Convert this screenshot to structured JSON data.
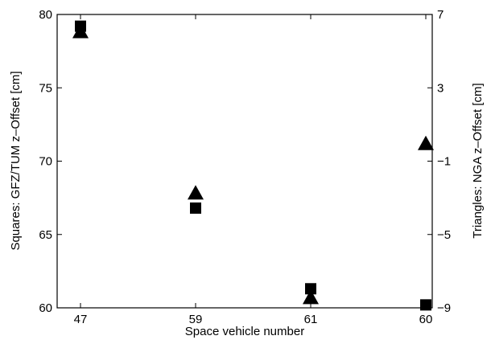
{
  "chart_data": {
    "type": "scatter",
    "xlabel": "Space vehicle number",
    "ylabel_left": "Squares:  GFZ/TUM z–Offset [cm]",
    "ylabel_right": "Triangles:  NGA z–Offset [cm]",
    "categories": [
      "47",
      "59",
      "61",
      "60"
    ],
    "y_left_ticks": [
      "60",
      "65",
      "70",
      "75",
      "80"
    ],
    "y_right_ticks": [
      "−9",
      "−5",
      "−1",
      "3",
      "7"
    ],
    "ylim_left": [
      60,
      80
    ],
    "ylim_right": [
      -9,
      7
    ],
    "series": [
      {
        "marker": "square",
        "axis": "left",
        "values": [
          79.2,
          66.8,
          61.3,
          60.2
        ]
      },
      {
        "marker": "triangle",
        "axis": "right",
        "values": [
          6.1,
          -2.7,
          -8.4,
          0.0
        ]
      }
    ]
  }
}
